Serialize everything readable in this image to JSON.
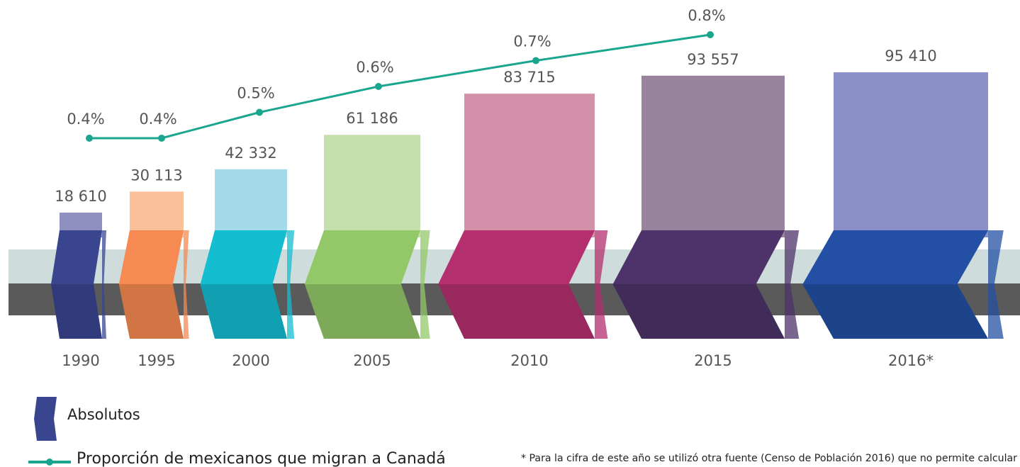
{
  "chart_data": {
    "type": "bar",
    "categories": [
      "1990",
      "1995",
      "2000",
      "2005",
      "2010",
      "2015",
      "2016*"
    ],
    "series": [
      {
        "name": "Absolutos",
        "type": "bar",
        "colors": [
          "#9090c0",
          "#f9c09a",
          "#a3dce8",
          "#c5dfad",
          "#d291a8",
          "#98849f",
          "#8b90c8"
        ],
        "ribbon_colors": [
          "#3a4590",
          "#f68a52",
          "#15bdd0",
          "#93c868",
          "#b32f6e",
          "#4d3369",
          "#2350a4"
        ],
        "values": [
          18610,
          30113,
          42332,
          61186,
          83715,
          93557,
          95410
        ],
        "value_labels": [
          "18 610",
          "30 113",
          "42 332",
          "61 186",
          "83 715",
          "93 557",
          "95 410"
        ]
      },
      {
        "name": "Proporción de mexicanos que migran a Canadá",
        "type": "line",
        "color": "#1aa58e",
        "values": [
          0.4,
          0.4,
          0.5,
          0.6,
          0.7,
          0.8,
          null
        ],
        "value_labels": [
          "0.4%",
          "0.4%",
          "0.5%",
          "0.6%",
          "0.7%",
          "0.8%",
          null
        ]
      }
    ],
    "footnote": "* Para la cifra de este año se utilizó otra fuente (Censo de Población 2016) que no permite calcular"
  }
}
